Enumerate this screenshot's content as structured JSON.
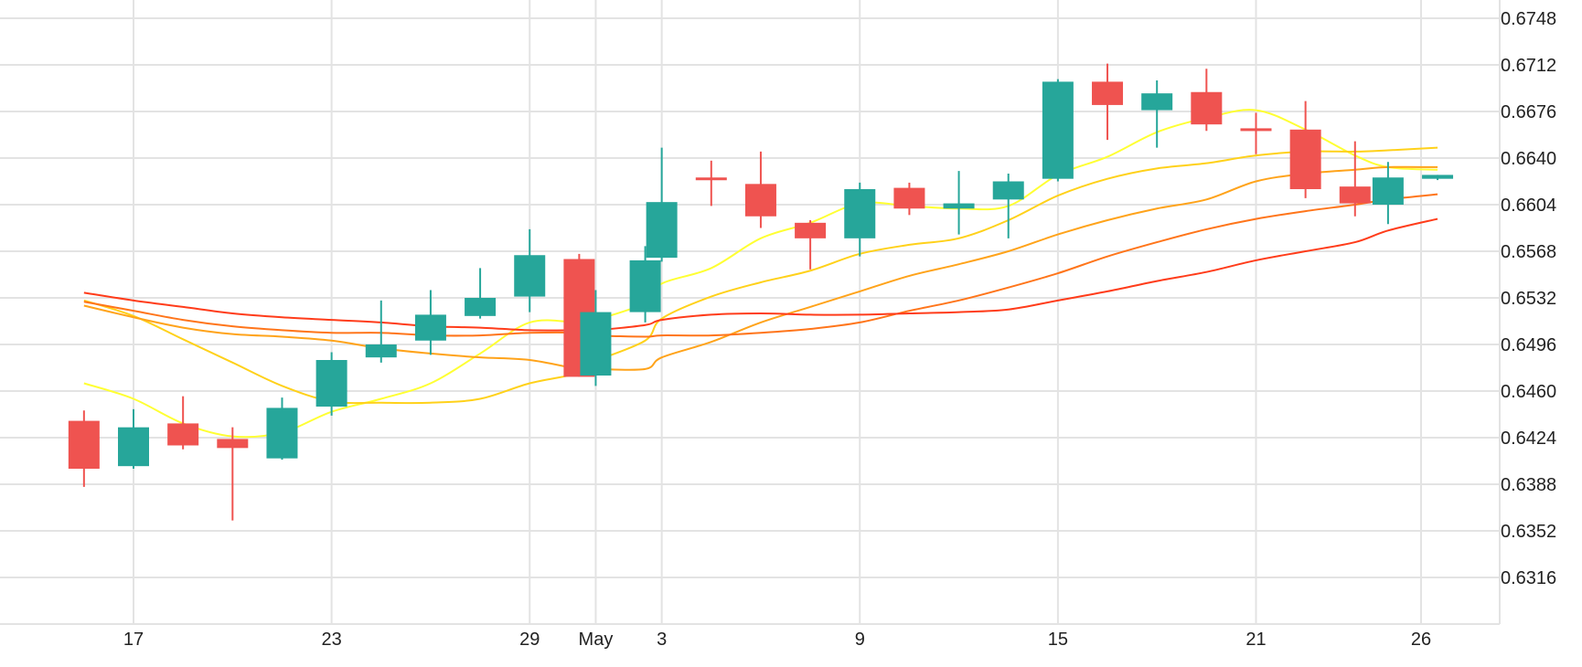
{
  "chart_data": {
    "type": "candlestick",
    "title": "",
    "xlabel": "",
    "ylabel": "",
    "ylim": [
      0.628,
      0.676
    ],
    "y_axis_position": "right",
    "grid": true,
    "legend": "none",
    "y_ticks": [
      "0.6316",
      "0.6352",
      "0.6388",
      "0.6424",
      "0.6460",
      "0.6496",
      "0.6532",
      "0.6568",
      "0.6604",
      "0.6640",
      "0.6676",
      "0.6712",
      "0.6748"
    ],
    "x_ticks": [
      {
        "date": "Apr 17",
        "label": "17"
      },
      {
        "date": "Apr 23",
        "label": "23"
      },
      {
        "date": "Apr 29",
        "label": "29"
      },
      {
        "date": "May 1",
        "label": "May"
      },
      {
        "date": "May 3",
        "label": "3"
      },
      {
        "date": "May 9",
        "label": "9"
      },
      {
        "date": "May 15",
        "label": "15"
      },
      {
        "date": "May 21",
        "label": "21"
      },
      {
        "date": "May 26",
        "label": "26"
      }
    ],
    "candles": [
      {
        "date": "Apr 15.5",
        "open": 0.6437,
        "high": 0.6445,
        "low": 0.6386,
        "close": 0.64
      },
      {
        "date": "Apr 17",
        "open": 0.6402,
        "high": 0.6446,
        "low": 0.64,
        "close": 0.6432
      },
      {
        "date": "Apr 18.5",
        "open": 0.6435,
        "high": 0.6456,
        "low": 0.6415,
        "close": 0.6418
      },
      {
        "date": "Apr 20",
        "open": 0.6423,
        "high": 0.6432,
        "low": 0.636,
        "close": 0.6416
      },
      {
        "date": "Apr 21.5",
        "open": 0.6408,
        "high": 0.6455,
        "low": 0.6407,
        "close": 0.6447
      },
      {
        "date": "Apr 23",
        "open": 0.6448,
        "high": 0.649,
        "low": 0.6441,
        "close": 0.6484
      },
      {
        "date": "Apr 24.5",
        "open": 0.6486,
        "high": 0.653,
        "low": 0.6482,
        "close": 0.6496
      },
      {
        "date": "Apr 26",
        "open": 0.6499,
        "high": 0.6538,
        "low": 0.6488,
        "close": 0.6519
      },
      {
        "date": "Apr 27.5",
        "open": 0.6518,
        "high": 0.6555,
        "low": 0.6516,
        "close": 0.6532
      },
      {
        "date": "Apr 29",
        "open": 0.6533,
        "high": 0.6585,
        "low": 0.6521,
        "close": 0.6565
      },
      {
        "date": "Apr 30.5",
        "open": 0.6562,
        "high": 0.6566,
        "low": 0.6471,
        "close": 0.6471
      },
      {
        "date": "May 1",
        "open": 0.6472,
        "high": 0.6538,
        "low": 0.6464,
        "close": 0.6521
      },
      {
        "date": "May 2.5",
        "open": 0.6521,
        "high": 0.6572,
        "low": 0.6513,
        "close": 0.6561
      },
      {
        "date": "May 3",
        "open": 0.6563,
        "high": 0.6648,
        "low": 0.656,
        "close": 0.6606
      },
      {
        "date": "May 4.5",
        "open": 0.6625,
        "high": 0.6638,
        "low": 0.6603,
        "close": 0.6623
      },
      {
        "date": "May 6",
        "open": 0.662,
        "high": 0.6645,
        "low": 0.6586,
        "close": 0.6595
      },
      {
        "date": "May 7.5",
        "open": 0.659,
        "high": 0.6592,
        "low": 0.6554,
        "close": 0.6578
      },
      {
        "date": "May 9",
        "open": 0.6578,
        "high": 0.6621,
        "low": 0.6564,
        "close": 0.6616
      },
      {
        "date": "May 10.5",
        "open": 0.6617,
        "high": 0.6621,
        "low": 0.6596,
        "close": 0.6601
      },
      {
        "date": "May 12",
        "open": 0.6601,
        "high": 0.663,
        "low": 0.6581,
        "close": 0.6605
      },
      {
        "date": "May 13.5",
        "open": 0.6608,
        "high": 0.6628,
        "low": 0.6578,
        "close": 0.6622
      },
      {
        "date": "May 15",
        "open": 0.6624,
        "high": 0.6701,
        "low": 0.6622,
        "close": 0.6699
      },
      {
        "date": "May 16.5",
        "open": 0.6699,
        "high": 0.6713,
        "low": 0.6654,
        "close": 0.6681
      },
      {
        "date": "May 18",
        "open": 0.6677,
        "high": 0.67,
        "low": 0.6648,
        "close": 0.669
      },
      {
        "date": "May 19.5",
        "open": 0.6691,
        "high": 0.6709,
        "low": 0.6661,
        "close": 0.6666
      },
      {
        "date": "May 21",
        "open": 0.6663,
        "high": 0.6675,
        "low": 0.6643,
        "close": 0.6661
      },
      {
        "date": "May 22.5",
        "open": 0.6662,
        "high": 0.6684,
        "low": 0.6609,
        "close": 0.6616
      },
      {
        "date": "May 24",
        "open": 0.6618,
        "high": 0.6653,
        "low": 0.6595,
        "close": 0.6605
      },
      {
        "date": "May 25",
        "open": 0.6604,
        "high": 0.6637,
        "low": 0.6589,
        "close": 0.6625
      },
      {
        "date": "May 26.5",
        "open": 0.6624,
        "high": 0.6627,
        "low": 0.6623,
        "close": 0.6627
      }
    ],
    "series": [
      {
        "color": "#ffff33",
        "values": [
          0.6466,
          0.6454,
          0.6435,
          0.6425,
          0.6428,
          0.6444,
          0.6454,
          0.6466,
          0.6489,
          0.6513,
          0.6513,
          0.6515,
          0.6528,
          0.6543,
          0.6555,
          0.6578,
          0.659,
          0.6605,
          0.6603,
          0.6601,
          0.6603,
          0.6627,
          0.6641,
          0.666,
          0.6671,
          0.6677,
          0.6662,
          0.6642,
          0.6633,
          0.6631
        ]
      },
      {
        "color": "#ffd11a",
        "values": [
          0.653,
          0.6518,
          0.65,
          0.6482,
          0.6464,
          0.6452,
          0.6451,
          0.6451,
          0.6454,
          0.6466,
          0.6474,
          0.6483,
          0.6499,
          0.6516,
          0.6533,
          0.6544,
          0.6553,
          0.6566,
          0.6573,
          0.6578,
          0.6592,
          0.6611,
          0.6624,
          0.6632,
          0.6636,
          0.6642,
          0.6645,
          0.6645,
          0.6646,
          0.6648
        ]
      },
      {
        "color": "#ffa31a",
        "values": [
          0.6526,
          0.6517,
          0.6509,
          0.6504,
          0.6502,
          0.6499,
          0.6493,
          0.6489,
          0.6486,
          0.6484,
          0.6477,
          0.6477,
          0.6477,
          0.6486,
          0.6498,
          0.6513,
          0.6525,
          0.6537,
          0.6549,
          0.6558,
          0.6568,
          0.6581,
          0.6592,
          0.6601,
          0.6608,
          0.6622,
          0.6628,
          0.6631,
          0.6633,
          0.6633
        ]
      },
      {
        "color": "#ff751a",
        "values": [
          0.6529,
          0.6522,
          0.6515,
          0.651,
          0.6507,
          0.6505,
          0.6505,
          0.6503,
          0.6503,
          0.6505,
          0.6505,
          0.6503,
          0.6502,
          0.6503,
          0.6503,
          0.6505,
          0.6508,
          0.6513,
          0.6522,
          0.653,
          0.654,
          0.6551,
          0.6564,
          0.6575,
          0.6585,
          0.6593,
          0.6599,
          0.6604,
          0.6608,
          0.6612
        ]
      },
      {
        "color": "#ff3c1a",
        "values": [
          0.6536,
          0.653,
          0.6525,
          0.652,
          0.6517,
          0.6515,
          0.6513,
          0.651,
          0.6509,
          0.6507,
          0.6507,
          0.6507,
          0.6511,
          0.6515,
          0.6519,
          0.652,
          0.6519,
          0.6519,
          0.652,
          0.6521,
          0.6523,
          0.653,
          0.6537,
          0.6545,
          0.6552,
          0.6561,
          0.6568,
          0.6575,
          0.6584,
          0.6593
        ]
      }
    ],
    "colors": {
      "up": "#26a69a",
      "down": "#ef5350",
      "grid": "#e3e3e3",
      "text": "#222222"
    }
  }
}
